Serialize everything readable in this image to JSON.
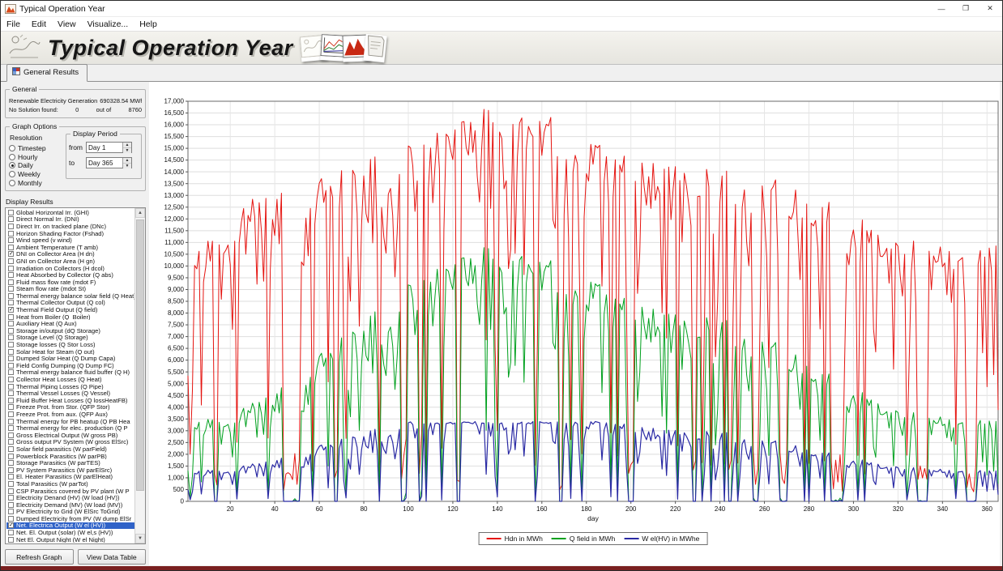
{
  "window": {
    "title": "Typical Operation Year"
  },
  "menu": {
    "items": [
      "File",
      "Edit",
      "View",
      "Visualize...",
      "Help"
    ]
  },
  "banner": {
    "title": "Typical Operation Year"
  },
  "tab": {
    "label": "General Results"
  },
  "general": {
    "legend": "General",
    "row1": {
      "label": "Renewable Electricity Generation",
      "value": "690328.54 MWh"
    },
    "row2": {
      "label": "No Solution found:",
      "value": "0",
      "mid": "out of",
      "total": "8760"
    }
  },
  "graph_options": {
    "legend": "Graph Options",
    "resolution_label": "Resolution",
    "resolution_options": [
      {
        "label": "Timestep",
        "selected": false
      },
      {
        "label": "Hourly",
        "selected": false
      },
      {
        "label": "Daily",
        "selected": true
      },
      {
        "label": "Weekly",
        "selected": false
      },
      {
        "label": "Monthly",
        "selected": false
      }
    ],
    "display_period": {
      "legend": "Display Period",
      "from_label": "from",
      "from_value": "Day 1",
      "to_label": "to",
      "to_value": "Day 365"
    }
  },
  "display_results": {
    "label": "Display Results",
    "items": [
      {
        "label": "Global Horizontal Irr. (GHI)",
        "checked": false
      },
      {
        "label": "Direct Normal Irr. (DNI)",
        "checked": false
      },
      {
        "label": "Direct Irr. on tracked plane (DNc)",
        "checked": false
      },
      {
        "label": "Horizon Shading Factor (Fshad)",
        "checked": false
      },
      {
        "label": "Wind speed (v wind)",
        "checked": false
      },
      {
        "label": "Ambient Temperature (T amb)",
        "checked": false
      },
      {
        "label": "DNI on Collector Area (H dn)",
        "checked": true
      },
      {
        "label": "GNI on Collector Area (H gn)",
        "checked": false
      },
      {
        "label": "Irradiation on Collectors (H dcol)",
        "checked": false
      },
      {
        "label": "Heat Absorbed by Collector (Q abs)",
        "checked": false
      },
      {
        "label": "Fluid mass flow rate (mdot F)",
        "checked": false
      },
      {
        "label": "Steam flow rate (mdot St)",
        "checked": false
      },
      {
        "label": "Thermal energy balance solar field (Q Heat)",
        "checked": false
      },
      {
        "label": "Thermal Collector Output (Q col)",
        "checked": false
      },
      {
        "label": "Thermal Field Output (Q field)",
        "checked": true
      },
      {
        "label": "Heat from Boiler (Q_Boiler)",
        "checked": false
      },
      {
        "label": "Auxiliary Heat (Q Aux)",
        "checked": false
      },
      {
        "label": "Storage in/output (dQ Storage)",
        "checked": false
      },
      {
        "label": "Storage Level (Q Storage)",
        "checked": false
      },
      {
        "label": "Storage losses (Q Stor Loss)",
        "checked": false
      },
      {
        "label": "Solar Heat for Steam (Q out)",
        "checked": false
      },
      {
        "label": "Dumped Solar Heat (Q Dump Capa)",
        "checked": false
      },
      {
        "label": "Field Config Dumping (Q Dump FC)",
        "checked": false
      },
      {
        "label": "Thermal energy balance fluid buffer (Q H)",
        "checked": false
      },
      {
        "label": "Collector Heat Losses (Q Heat)",
        "checked": false
      },
      {
        "label": "Thermal Piping Losses (Q Pipe)",
        "checked": false
      },
      {
        "label": "Thermal Vessel Losses (Q Vessel)",
        "checked": false
      },
      {
        "label": "Fluid Buffer Heat Losses (Q lossHeatFB)",
        "checked": false
      },
      {
        "label": "Freeze Prot. from Stor. (QFP Stor)",
        "checked": false
      },
      {
        "label": "Freeze Prot. from aux. (QFP Aux)",
        "checked": false
      },
      {
        "label": "Thermal energy for PB heatup (Q PB Hea",
        "checked": false
      },
      {
        "label": "Thermal energy for elec. production (Q P",
        "checked": false
      },
      {
        "label": "Gross Electrical Output (W gross PB)",
        "checked": false
      },
      {
        "label": "Gross output PV System (W gross ElSrc)",
        "checked": false
      },
      {
        "label": "Solar field parasitics (W parField)",
        "checked": false
      },
      {
        "label": "Powerblock Parasitics (W parPB)",
        "checked": false
      },
      {
        "label": "Storage Parasitics (W parTES)",
        "checked": false
      },
      {
        "label": "PV System Parasitics (W parElSrc)",
        "checked": false
      },
      {
        "label": "El. Heater Parasitics (W parElHeat)",
        "checked": false
      },
      {
        "label": "Total Parasitics (W parTot)",
        "checked": false
      },
      {
        "label": "CSP Parasitics covered by PV plant (W P",
        "checked": false
      },
      {
        "label": "Electricity Denand (HV) (W load (HV))",
        "checked": false
      },
      {
        "label": "Electricity Demand (MV) (W load (MV))",
        "checked": false
      },
      {
        "label": "PV Electricity to Grid (W ElSrc ToGrid)",
        "checked": false
      },
      {
        "label": "Dumped Electricity from PV (W dump ElSr",
        "checked": false
      },
      {
        "label": "Net. Electrica Output (W el (HV))",
        "checked": true,
        "selected": true
      },
      {
        "label": "Net. El. Output (solar) (W el,s (HV))",
        "checked": false
      },
      {
        "label": "Net El. Output Night (W el Night)",
        "checked": false
      },
      {
        "label": "Net El. Output OffPeak (W el OffPeak)",
        "checked": false
      },
      {
        "label": "Net El. Output Peak (W el Peak)",
        "checked": false
      }
    ]
  },
  "buttons": {
    "refresh_label": "Refresh Graph",
    "view_table_label": "View Data Table"
  },
  "chart_data": {
    "type": "line",
    "approximate": true,
    "xlabel": "day",
    "x_min": 1,
    "x_max": 365,
    "x_ticks": [
      20,
      40,
      60,
      80,
      100,
      120,
      140,
      160,
      180,
      200,
      220,
      240,
      260,
      280,
      300,
      320,
      340,
      360
    ],
    "ylim": [
      0,
      17000
    ],
    "y_tick_step": 500,
    "grid": true,
    "legend_position": "bottom",
    "series": [
      {
        "name": "Hdn in MWh",
        "color": "#e51410",
        "envelope": [
          [
            1,
            10800
          ],
          [
            15,
            11600
          ],
          [
            30,
            12900
          ],
          [
            45,
            13400
          ],
          [
            60,
            13800
          ],
          [
            75,
            14300
          ],
          [
            90,
            14900
          ],
          [
            105,
            15400
          ],
          [
            120,
            16200
          ],
          [
            135,
            16800
          ],
          [
            150,
            16500
          ],
          [
            165,
            16300
          ],
          [
            180,
            15600
          ],
          [
            195,
            15200
          ],
          [
            210,
            15000
          ],
          [
            225,
            14800
          ],
          [
            240,
            14200
          ],
          [
            255,
            13900
          ],
          [
            270,
            13600
          ],
          [
            285,
            13100
          ],
          [
            295,
            12500
          ],
          [
            310,
            11600
          ],
          [
            325,
            11100
          ],
          [
            340,
            10800
          ],
          [
            355,
            10600
          ],
          [
            365,
            10900
          ]
        ]
      },
      {
        "name": "Q field in MWh",
        "color": "#00a01e",
        "clearness_offset": 0.12,
        "envelope": [
          [
            1,
            3500
          ],
          [
            20,
            3700
          ],
          [
            40,
            4700
          ],
          [
            60,
            6300
          ],
          [
            80,
            7700
          ],
          [
            100,
            9300
          ],
          [
            120,
            10400
          ],
          [
            135,
            10900
          ],
          [
            150,
            10600
          ],
          [
            165,
            10200
          ],
          [
            180,
            9700
          ],
          [
            200,
            8900
          ],
          [
            220,
            8400
          ],
          [
            240,
            7900
          ],
          [
            260,
            7000
          ],
          [
            280,
            6100
          ],
          [
            295,
            5100
          ],
          [
            310,
            4300
          ],
          [
            325,
            3800
          ],
          [
            345,
            3500
          ],
          [
            365,
            3400
          ]
        ]
      },
      {
        "name": "W el(HV) in MWhe",
        "color": "#2a2aa4",
        "cap": 3400,
        "ratio_of_field": 0.38
      }
    ],
    "weather": {
      "seed": 20147,
      "p_overcast": 0.1,
      "p_mixed": 0.13,
      "p_partly": 0.22,
      "low_clusters": [
        [
          44,
          51
        ],
        [
          67,
          68
        ],
        [
          97,
          98
        ],
        [
          122,
          123
        ],
        [
          168,
          169
        ],
        [
          199,
          201
        ],
        [
          228,
          229
        ],
        [
          255,
          257
        ],
        [
          267,
          270
        ],
        [
          291,
          295
        ],
        [
          329,
          333
        ],
        [
          352,
          355
        ]
      ]
    }
  }
}
